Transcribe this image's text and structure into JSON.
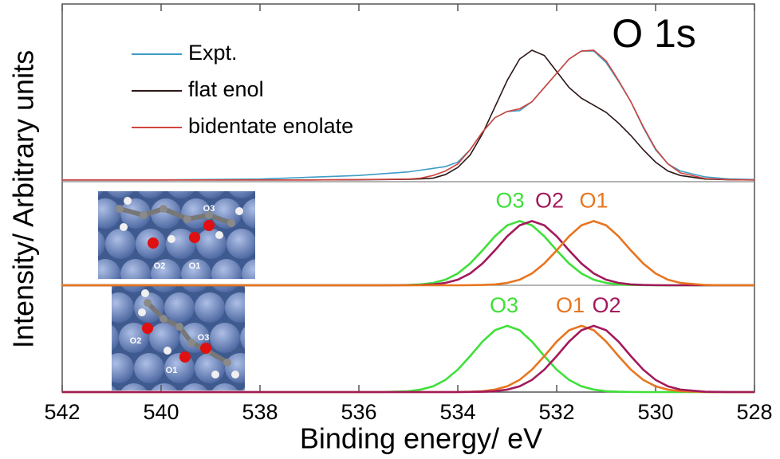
{
  "chart_data": {
    "type": "line",
    "title": "O 1s",
    "xlabel": "Binding energy/ eV",
    "ylabel": "Intensity/ Arbitrary units",
    "xlim": [
      542,
      528
    ],
    "xticks": [
      542,
      540,
      538,
      536,
      534,
      532,
      530,
      528
    ],
    "x": [
      542,
      540,
      538,
      537,
      536,
      535.5,
      535,
      534.75,
      534.5,
      534.25,
      534,
      533.75,
      533.5,
      533.25,
      533,
      532.75,
      532.5,
      532.25,
      532,
      531.75,
      531.5,
      531.25,
      531,
      530.75,
      530.5,
      530.25,
      530,
      529.75,
      529.5,
      529,
      528.5,
      528
    ],
    "panels": [
      {
        "ylim": [
          0,
          100
        ],
        "legend": "upper left",
        "series": [
          {
            "name": "Expt.",
            "color": "#3d9cc6",
            "values": [
              1,
              1,
              1.5,
              2.5,
              3.5,
              4.5,
              5.5,
              6.5,
              7.5,
              8.5,
              11,
              18,
              28,
              36,
              39.5,
              40,
              45,
              53,
              61,
              69,
              73.5,
              73.5,
              67,
              56.5,
              45,
              30.5,
              18,
              10,
              6,
              2.7,
              1.5,
              1.2
            ]
          },
          {
            "name": "flat enol",
            "color": "#2b1515",
            "values": [
              1,
              1,
              1,
              1,
              1.1,
              1.2,
              1.3,
              1.6,
              2,
              4,
              8,
              15,
              27,
              42,
              57,
              69,
              74,
              71,
              62,
              53,
              47,
              43,
              39,
              33,
              26,
              18,
              11,
              6,
              3.5,
              1.5,
              1.1,
              1
            ]
          },
          {
            "name": "bidentate enolate",
            "color": "#d0453f",
            "values": [
              1,
              1,
              1,
              1,
              1.2,
              1.3,
              1.5,
              2,
              3.5,
              6,
              10,
              18,
              28,
              36,
              39.5,
              41,
              45,
              53,
              61,
              69,
              73.5,
              74,
              68,
              57,
              45,
              31,
              18.5,
              10,
              5,
              1.8,
              1.1,
              1
            ]
          }
        ]
      },
      {
        "ylim": [
          0,
          100
        ],
        "inset_labels": [
          "O3",
          "O2",
          "O1"
        ],
        "series": [
          {
            "name": "O3",
            "color": "#3fe03a",
            "values": [
              0,
              0,
              0,
              0,
              0,
              0,
              0.3,
              0.8,
              2.3,
              5.4,
              11.4,
              21,
              33.7,
              47.3,
              57.9,
              62,
              57.9,
              47.3,
              33.7,
              21,
              11.4,
              5.4,
              2.3,
              0.8,
              0.3,
              0.1,
              0,
              0,
              0,
              0,
              0,
              0
            ]
          },
          {
            "name": "O2",
            "color": "#a3195b",
            "values": [
              0,
              0,
              0,
              0,
              0,
              0,
              0.1,
              0.3,
              0.8,
              2.3,
              5.4,
              11.4,
              21,
              33.7,
              47.3,
              57.9,
              62,
              57.9,
              47.3,
              33.7,
              21,
              11.4,
              5.4,
              2.3,
              0.8,
              0.3,
              0.1,
              0,
              0,
              0,
              0,
              0
            ]
          },
          {
            "name": "O1",
            "color": "#e8751f",
            "values": [
              0,
              0,
              0,
              0,
              0,
              0,
              0,
              0,
              0,
              0,
              0,
              0.1,
              0.3,
              0.8,
              2.3,
              5.4,
              11.4,
              21,
              33.7,
              47.3,
              57.9,
              62,
              57.9,
              47.3,
              33.7,
              21,
              11.4,
              5.4,
              2.3,
              0.3,
              0,
              0
            ]
          }
        ]
      },
      {
        "ylim": [
          0,
          100
        ],
        "inset_labels": [
          "O2",
          "O3",
          "O1"
        ],
        "series": [
          {
            "name": "O3",
            "color": "#3fe03a",
            "values": [
              0,
              0,
              0,
              0,
              0,
              0.1,
              0.8,
              2.3,
              5.4,
              11.4,
              21,
              33.7,
              47.3,
              57.9,
              62,
              57.9,
              47.3,
              33.7,
              21,
              11.4,
              5.4,
              2.3,
              0.8,
              0.3,
              0.1,
              0,
              0,
              0,
              0,
              0,
              0,
              0
            ]
          },
          {
            "name": "O1",
            "color": "#e8751f",
            "values": [
              0,
              0,
              0,
              0,
              0,
              0,
              0,
              0,
              0,
              0,
              0.1,
              0.3,
              0.8,
              2.3,
              5.4,
              11.4,
              21,
              33.7,
              47.3,
              57.9,
              62,
              57.9,
              47.3,
              33.7,
              21,
              11.4,
              5.4,
              2.3,
              0.8,
              0.1,
              0,
              0
            ]
          },
          {
            "name": "O2",
            "color": "#a3195b",
            "values": [
              0,
              0,
              0,
              0,
              0,
              0,
              0,
              0,
              0,
              0,
              0,
              0.1,
              0.3,
              0.8,
              2.3,
              5.4,
              11.4,
              21,
              33.7,
              47.3,
              57.9,
              62,
              57.9,
              47.3,
              33.7,
              21,
              11.4,
              5.4,
              2.3,
              0.3,
              0,
              0
            ]
          }
        ]
      }
    ]
  }
}
